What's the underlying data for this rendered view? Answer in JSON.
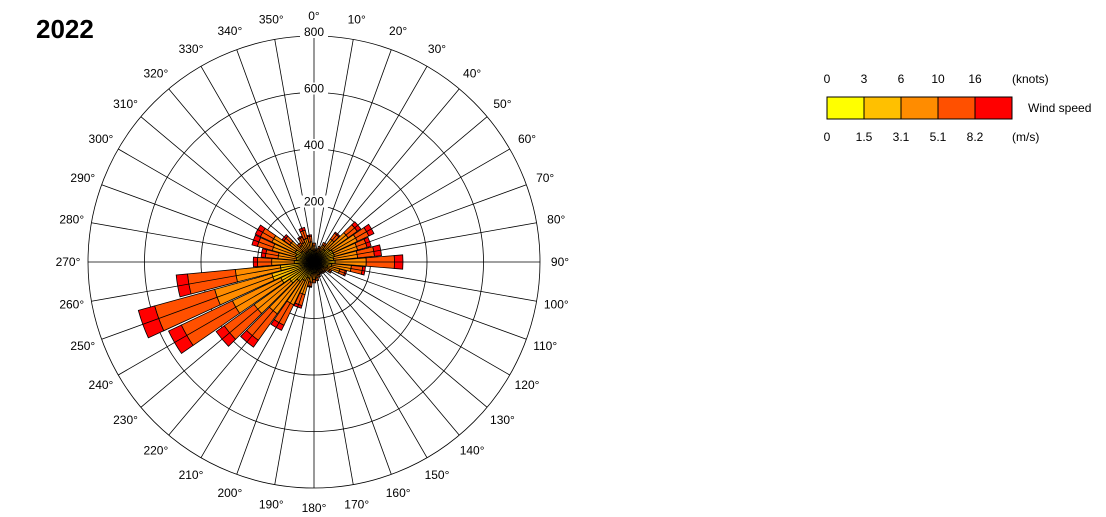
{
  "title": "2022",
  "chart_data": {
    "type": "wind-rose",
    "title": "2022",
    "direction_labels": [
      "0°",
      "10°",
      "20°",
      "30°",
      "40°",
      "50°",
      "60°",
      "70°",
      "80°",
      "90°",
      "100°",
      "110°",
      "120°",
      "130°",
      "140°",
      "150°",
      "160°",
      "170°",
      "180°",
      "190°",
      "200°",
      "210°",
      "220°",
      "230°",
      "240°",
      "250°",
      "260°",
      "270°",
      "280°",
      "290°",
      "300°",
      "310°",
      "320°",
      "330°",
      "340°",
      "350°"
    ],
    "radial_ticks": [
      200,
      400,
      600,
      800
    ],
    "radial_max": 800,
    "grid": true,
    "speed_bins": [
      {
        "name": "0–1.5 m/s",
        "color": "#FFFF00"
      },
      {
        "name": "1.5–3.1 m/s",
        "color": "#FFC000"
      },
      {
        "name": "3.1–5.1 m/s",
        "color": "#FF8C00"
      },
      {
        "name": "5.1–8.2 m/s",
        "color": "#FF5000"
      },
      {
        "name": ">8.2 m/s",
        "color": "#FF0000"
      }
    ],
    "series": [
      {
        "direction": 0,
        "values": [
          12,
          25,
          20,
          10,
          0
        ]
      },
      {
        "direction": 10,
        "values": [
          10,
          20,
          12,
          5,
          0
        ]
      },
      {
        "direction": 20,
        "values": [
          10,
          22,
          18,
          8,
          0
        ]
      },
      {
        "direction": 30,
        "values": [
          12,
          30,
          25,
          10,
          0
        ]
      },
      {
        "direction": 40,
        "values": [
          15,
          40,
          45,
          25,
          5
        ]
      },
      {
        "direction": 50,
        "values": [
          18,
          50,
          80,
          40,
          15
        ]
      },
      {
        "direction": 60,
        "values": [
          20,
          55,
          95,
          45,
          20
        ]
      },
      {
        "direction": 70,
        "values": [
          20,
          55,
          85,
          35,
          15
        ]
      },
      {
        "direction": 80,
        "values": [
          20,
          50,
          85,
          60,
          25
        ]
      },
      {
        "direction": 90,
        "values": [
          20,
          55,
          110,
          100,
          30
        ]
      },
      {
        "direction": 100,
        "values": [
          18,
          45,
          70,
          40,
          10
        ]
      },
      {
        "direction": 110,
        "values": [
          15,
          35,
          45,
          20,
          5
        ]
      },
      {
        "direction": 120,
        "values": [
          12,
          25,
          25,
          8,
          0
        ]
      },
      {
        "direction": 130,
        "values": [
          10,
          20,
          18,
          5,
          0
        ]
      },
      {
        "direction": 140,
        "values": [
          10,
          20,
          15,
          5,
          0
        ]
      },
      {
        "direction": 150,
        "values": [
          10,
          18,
          15,
          5,
          0
        ]
      },
      {
        "direction": 160,
        "values": [
          10,
          20,
          18,
          8,
          0
        ]
      },
      {
        "direction": 170,
        "values": [
          12,
          25,
          20,
          10,
          0
        ]
      },
      {
        "direction": 180,
        "values": [
          12,
          25,
          25,
          12,
          0
        ]
      },
      {
        "direction": 190,
        "values": [
          12,
          30,
          30,
          15,
          3
        ]
      },
      {
        "direction": 200,
        "values": [
          15,
          45,
          60,
          40,
          10
        ]
      },
      {
        "direction": 210,
        "values": [
          18,
          55,
          95,
          80,
          20
        ]
      },
      {
        "direction": 220,
        "values": [
          20,
          65,
          140,
          115,
          30
        ]
      },
      {
        "direction": 230,
        "values": [
          25,
          80,
          155,
          130,
          35
        ]
      },
      {
        "direction": 240,
        "values": [
          30,
          100,
          190,
          200,
          50
        ]
      },
      {
        "direction": 250,
        "values": [
          35,
          120,
          210,
          220,
          60
        ]
      },
      {
        "direction": 260,
        "values": [
          30,
          90,
          160,
          170,
          40
        ]
      },
      {
        "direction": 270,
        "values": [
          20,
          50,
          80,
          50,
          15
        ]
      },
      {
        "direction": 280,
        "values": [
          18,
          45,
          65,
          45,
          15
        ]
      },
      {
        "direction": 290,
        "values": [
          18,
          50,
          85,
          55,
          20
        ]
      },
      {
        "direction": 300,
        "values": [
          20,
          55,
          90,
          45,
          20
        ]
      },
      {
        "direction": 310,
        "values": [
          15,
          40,
          50,
          25,
          8
        ]
      },
      {
        "direction": 320,
        "values": [
          12,
          30,
          30,
          12,
          0
        ]
      },
      {
        "direction": 330,
        "values": [
          12,
          30,
          35,
          20,
          5
        ]
      },
      {
        "direction": 340,
        "values": [
          12,
          35,
          40,
          30,
          10
        ]
      },
      {
        "direction": 350,
        "values": [
          12,
          30,
          30,
          20,
          5
        ]
      }
    ]
  },
  "legend": {
    "knots_ticks": [
      "0",
      "3",
      "6",
      "10",
      "16"
    ],
    "knots_unit": "(knots)",
    "ms_ticks": [
      "0",
      "1.5",
      "3.1",
      "5.1",
      "8.2"
    ],
    "ms_unit": "(m/s)",
    "label": "Wind speed",
    "colors": [
      "#FFFF00",
      "#FFC000",
      "#FF8C00",
      "#FF5000",
      "#FF0000"
    ]
  }
}
